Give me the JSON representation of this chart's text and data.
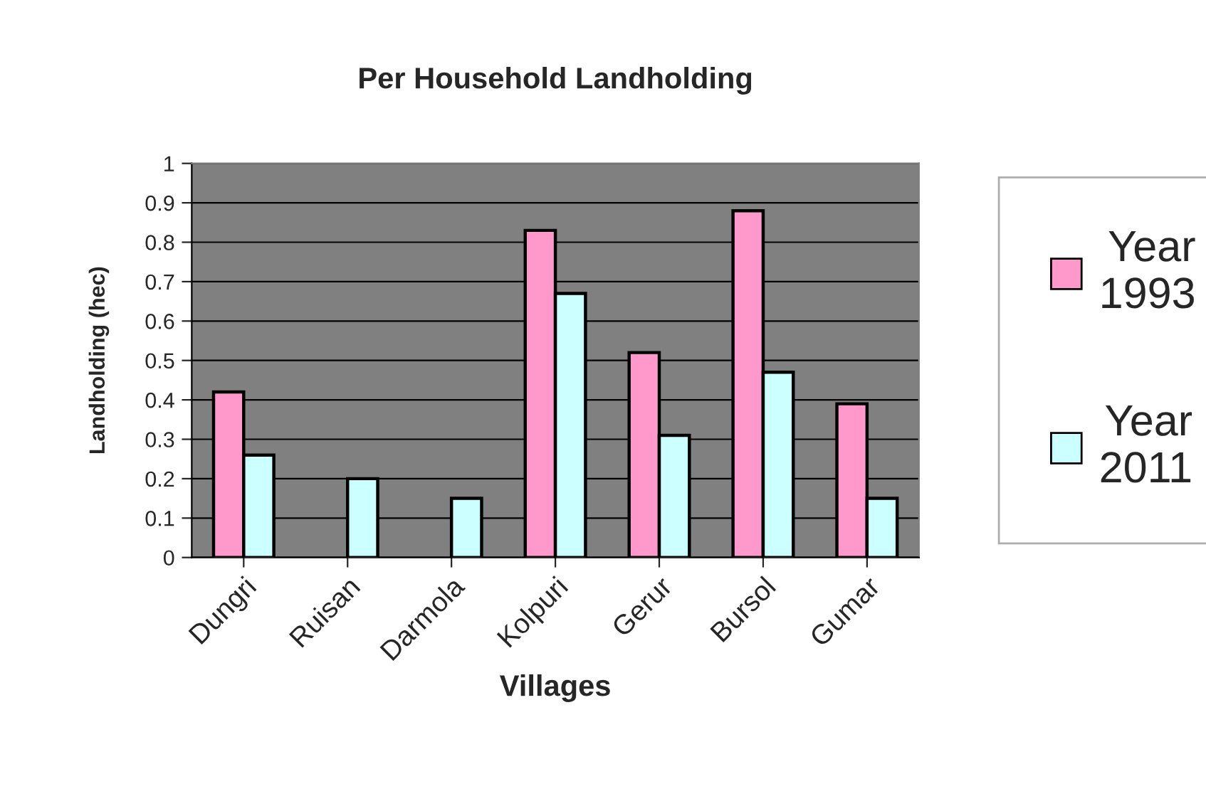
{
  "chart_data": {
    "type": "bar",
    "title": "Per Household Landholding",
    "xlabel": "Villages",
    "ylabel": "Landholding (hec)",
    "categories": [
      "Dungri",
      "Ruisan",
      "Darmola",
      "Kolpuri",
      "Gerur",
      "Bursol",
      "Gumar"
    ],
    "series": [
      {
        "name": "Year\n1993",
        "color": "#ff99cc",
        "values": [
          0.42,
          null,
          null,
          0.83,
          0.52,
          0.88,
          0.39
        ]
      },
      {
        "name": "Year\n2011",
        "color": "#ccffff",
        "values": [
          0.26,
          0.2,
          0.15,
          0.67,
          0.31,
          0.47,
          0.15
        ]
      }
    ],
    "ylim": [
      0,
      1
    ],
    "yticks": [
      0,
      0.1,
      0.2,
      0.3,
      0.4,
      0.5,
      0.6,
      0.7,
      0.8,
      0.9,
      1
    ],
    "grid": "y",
    "legend": "right"
  }
}
